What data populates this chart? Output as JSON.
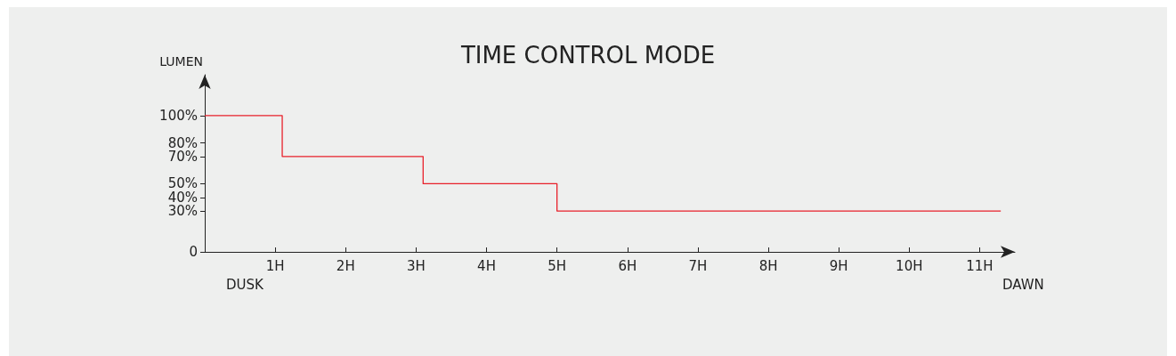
{
  "chart_data": {
    "type": "step",
    "title": "TIME CONTROL MODE",
    "ylabel": "LUMEN",
    "x": [
      0,
      1.1,
      3.1,
      5,
      11.3
    ],
    "series": [
      {
        "color": "#e8202a",
        "values": [
          100,
          70,
          50,
          30,
          30
        ]
      }
    ],
    "xlim": [
      0,
      11.5
    ],
    "xticks": [
      {
        "value": 1,
        "label": "1H"
      },
      {
        "value": 2,
        "label": "2H"
      },
      {
        "value": 3,
        "label": "3H"
      },
      {
        "value": 4,
        "label": "4H"
      },
      {
        "value": 5,
        "label": "5H"
      },
      {
        "value": 6,
        "label": "6H"
      },
      {
        "value": 7,
        "label": "7H"
      },
      {
        "value": 8,
        "label": "8H"
      },
      {
        "value": 9,
        "label": "9H"
      },
      {
        "value": 10,
        "label": "10H"
      },
      {
        "value": 11,
        "label": "11H"
      }
    ],
    "ylim": [
      0,
      130
    ],
    "yticks": [
      0,
      {
        "value": 30,
        "label": "30%"
      },
      {
        "value": 40,
        "label": "40%"
      },
      {
        "value": 50,
        "label": "50%"
      },
      {
        "value": 70,
        "label": "70%"
      },
      {
        "value": 80,
        "label": "80%"
      },
      {
        "value": 100,
        "label": "100%"
      }
    ],
    "annotations": [
      "DUSK",
      "DAWN"
    ],
    "grid": false,
    "marker": "none",
    "line_style": "solid"
  }
}
